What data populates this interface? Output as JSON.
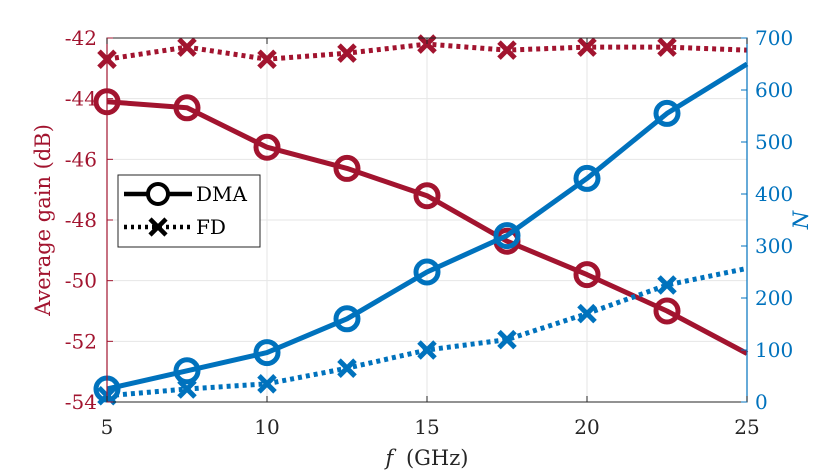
{
  "chart_data": {
    "type": "line",
    "title": "",
    "colors": {
      "left": "#A2142F",
      "right": "#0072BD",
      "grid": "#e6e6e6",
      "axis": "#262626"
    },
    "x": {
      "label": "f (GHz)",
      "label_var": "f",
      "label_unit": "(GHz)",
      "range": [
        5,
        25
      ],
      "ticks": [
        5,
        10,
        15,
        20,
        25
      ],
      "tick_labels": [
        "5",
        "10",
        "15",
        "20",
        "25"
      ]
    },
    "y_left": {
      "label": "Average gain (dB)",
      "range": [
        -54,
        -42
      ],
      "ticks": [
        -54,
        -52,
        -50,
        -48,
        -46,
        -44,
        -42
      ],
      "tick_labels": [
        "-54",
        "-52",
        "-50",
        "-48",
        "-46",
        "-44",
        "-42"
      ]
    },
    "y_right": {
      "label": "N",
      "range": [
        0,
        700
      ],
      "ticks": [
        0,
        100,
        200,
        300,
        400,
        500,
        600,
        700
      ],
      "tick_labels": [
        "0",
        "100",
        "200",
        "300",
        "400",
        "500",
        "600",
        "700"
      ]
    },
    "series": [
      {
        "name": "DMA",
        "axis": "left",
        "marker": "circle",
        "style": "solid",
        "x": [
          5,
          7.5,
          10,
          12.5,
          15,
          17.5,
          20,
          22.5,
          25
        ],
        "y": [
          -44.1,
          -44.3,
          -45.6,
          -46.3,
          -47.2,
          -48.7,
          -49.8,
          -51.0,
          -52.4
        ],
        "marker_x": [
          5,
          7.5,
          10,
          12.5,
          15,
          17.5,
          20,
          22.5
        ]
      },
      {
        "name": "FD",
        "axis": "left",
        "marker": "x",
        "style": "dotted",
        "x": [
          5,
          7.5,
          10,
          12.5,
          15,
          17.5,
          20,
          22.5,
          25
        ],
        "y": [
          -42.7,
          -42.3,
          -42.7,
          -42.5,
          -42.2,
          -42.4,
          -42.3,
          -42.3,
          -42.4
        ],
        "marker_x": [
          5,
          7.5,
          10,
          12.5,
          15,
          17.5,
          20,
          22.5
        ]
      },
      {
        "name": "DMA N",
        "axis": "right",
        "marker": "circle",
        "style": "solid",
        "x": [
          5,
          7.5,
          10,
          12.5,
          15,
          17.5,
          20,
          22.5,
          25
        ],
        "y": [
          25,
          60,
          95,
          160,
          250,
          320,
          430,
          555,
          650
        ],
        "marker_x": [
          5,
          7.5,
          10,
          12.5,
          15,
          17.5,
          20,
          22.5
        ]
      },
      {
        "name": "FD N",
        "axis": "right",
        "marker": "x",
        "style": "dotted",
        "x": [
          5,
          7.5,
          10,
          12.5,
          15,
          17.5,
          20,
          22.5,
          25
        ],
        "y": [
          12,
          25,
          35,
          65,
          100,
          120,
          170,
          225,
          257
        ],
        "marker_x": [
          5,
          7.5,
          10,
          12.5,
          15,
          17.5,
          20,
          22.5
        ]
      }
    ],
    "legend": {
      "position": "center-left",
      "entries": [
        {
          "label": "DMA",
          "marker": "circle",
          "style": "solid"
        },
        {
          "label": "FD",
          "marker": "x",
          "style": "dotted"
        }
      ]
    },
    "grid": true
  }
}
